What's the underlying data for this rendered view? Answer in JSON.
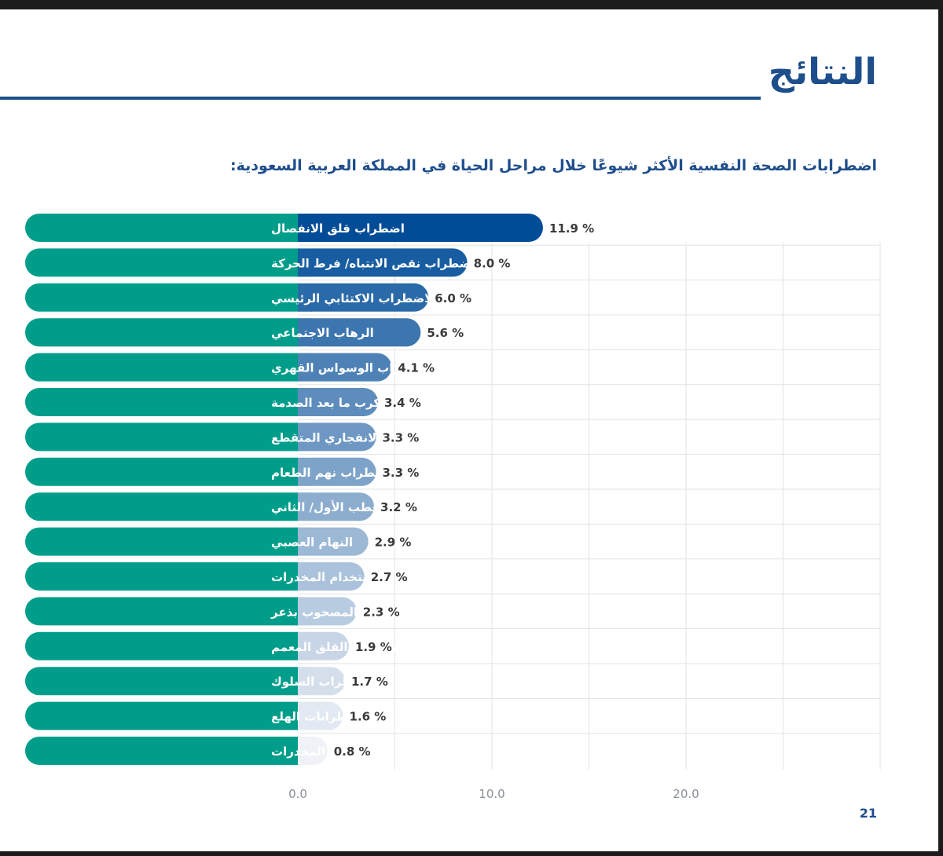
{
  "page": {
    "title": "النتائج",
    "subtitle": "اضطرابات الصحة النفسية الأكثر شيوعًا خلال مراحل الحياة في المملكة العربية السعودية:",
    "page_number": "21"
  },
  "colors": {
    "title": "#1e4e8c",
    "label_pill": "#009e8a",
    "bar_dark": "#004c97",
    "bar_light": "#f0f2f7",
    "value_text": "#3a3a3a",
    "grid": "#e3e3e3",
    "tick_text": "#8a8f99"
  },
  "chart_data": {
    "type": "bar",
    "orientation": "horizontal",
    "categories": [
      "اضطراب قلق الانفصال",
      "اضطراب نقص الانتباه/ فرط الحركة",
      "الاضطراب الاكتئابي الرئيسي",
      "الرهاب الاجتماعي",
      "اضطراب الوسواس القهري",
      "اضطراب الكرب ما بعد الصدمة",
      "الاضطراب الانفجاري المتقطع",
      "اضطراب نهم الطعام",
      "اضطراب ثنائي القطب الأول/ الثاني",
      "النهام العصبي",
      "إساءة استخدام المخدرات",
      "رهاب الخلاء غير المصحوب بذعر",
      "اضطراب القلق المعمم",
      "اضطراب السلوك",
      "اضطرابات الهلع",
      "إدمان المخدرات"
    ],
    "values": [
      11.9,
      8.0,
      6.0,
      5.6,
      4.1,
      3.4,
      3.3,
      3.3,
      3.2,
      2.9,
      2.7,
      2.3,
      1.9,
      1.7,
      1.6,
      0.8
    ],
    "value_labels": [
      "11.9 %",
      "8.0 %",
      "6.0 %",
      "5.6 %",
      "4.1 %",
      "3.4 %",
      "3.3 %",
      "3.3 %",
      "3.2 %",
      "2.9 %",
      "2.7 %",
      "2.3 %",
      "1.9 %",
      "1.7 %",
      "1.6 %",
      "0.8 %"
    ],
    "xlim": [
      0,
      30
    ],
    "x_ticks": [
      0,
      10,
      20
    ],
    "x_tick_labels": [
      "0.0",
      "10.0",
      "20.0"
    ],
    "grid": true
  }
}
